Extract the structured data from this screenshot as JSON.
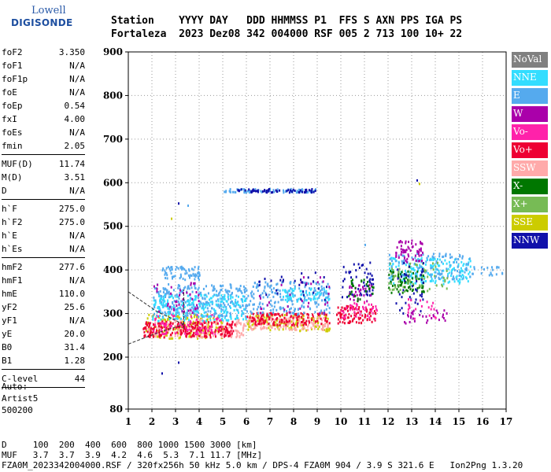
{
  "logo": {
    "line1": "Lowell",
    "line2": "DIGISONDE"
  },
  "header": {
    "line1": "Station    YYYY DAY   DDD HHMMSS P1  FFS S AXN PPS IGA PS",
    "line2": "Fortaleza  2023 Dez08 342 004000 RSF 005 2 713 100 10+ 22"
  },
  "params": {
    "group1": [
      {
        "name": "foF2",
        "value": "3.350"
      },
      {
        "name": "foF1",
        "value": "N/A"
      },
      {
        "name": "foF1p",
        "value": "N/A"
      },
      {
        "name": "foE",
        "value": "N/A"
      },
      {
        "name": "foEp",
        "value": "0.54"
      },
      {
        "name": "fxI",
        "value": "4.00"
      },
      {
        "name": "foEs",
        "value": "N/A"
      },
      {
        "name": "fmin",
        "value": "2.05"
      }
    ],
    "group2": [
      {
        "name": "MUF(D)",
        "value": "11.74"
      },
      {
        "name": "M(D)",
        "value": "3.51"
      },
      {
        "name": "D",
        "value": "N/A"
      }
    ],
    "group3": [
      {
        "name": "h`F",
        "value": "275.0"
      },
      {
        "name": "h`F2",
        "value": "275.0"
      },
      {
        "name": "h`E",
        "value": "N/A"
      },
      {
        "name": "h`Es",
        "value": "N/A"
      }
    ],
    "group4": [
      {
        "name": "hmF2",
        "value": "277.6"
      },
      {
        "name": "hmF1",
        "value": "N/A"
      },
      {
        "name": "hmE",
        "value": "110.0"
      },
      {
        "name": "yF2",
        "value": "25.6"
      },
      {
        "name": "yF1",
        "value": "N/A"
      },
      {
        "name": "yE",
        "value": "20.0"
      },
      {
        "name": "B0",
        "value": "31.4"
      },
      {
        "name": "B1",
        "value": "1.28"
      }
    ],
    "group5": [
      {
        "name": "C-level",
        "value": "44"
      }
    ]
  },
  "auto": {
    "line1": "Auto:",
    "line2": "Artist5",
    "line3": "500200"
  },
  "legend": [
    {
      "label": "NoVal",
      "color": "#808080"
    },
    {
      "label": "NNE",
      "color": "#33ddff"
    },
    {
      "label": "E",
      "color": "#55aaee"
    },
    {
      "label": "W",
      "color": "#aa00aa"
    },
    {
      "label": "Vo-",
      "color": "#ff22aa"
    },
    {
      "label": "Vo+",
      "color": "#ee0033"
    },
    {
      "label": "SSW",
      "color": "#ffaaaa"
    },
    {
      "label": "X-",
      "color": "#007700"
    },
    {
      "label": "X+",
      "color": "#77bb55"
    },
    {
      "label": "SSE",
      "color": "#cccc00"
    },
    {
      "label": "NNW",
      "color": "#1111aa"
    }
  ],
  "footer": {
    "line1": "D     100  200  400  600  800 1000 1500 3000 [km]",
    "line2": "MUF   3.7  3.7  3.9  4.2  4.6  5.3  7.1 11.7 [MHz]",
    "line3": "FZA0M_2023342004000.RSF / 320fx256h 50 kHz 5.0 km / DPS-4 FZA0M 904 / 3.9 S 321.6 E   Ion2Png 1.3.20"
  },
  "chart_data": {
    "type": "scatter",
    "title": "",
    "xlabel": "",
    "ylabel": "",
    "xlim": [
      1,
      17
    ],
    "ylim": [
      80,
      900
    ],
    "x_ticks": [
      1,
      2,
      3,
      4,
      5,
      6,
      7,
      8,
      9,
      10,
      11,
      12,
      13,
      14,
      15,
      16,
      17
    ],
    "y_ticks": [
      80,
      200,
      300,
      400,
      500,
      600,
      700,
      800,
      900
    ],
    "grid": "dotted",
    "legend_position": "right",
    "clusters": [
      {
        "series": "SSE",
        "x": [
          1.7,
          5.0
        ],
        "y": [
          245,
          300
        ],
        "n": 180
      },
      {
        "series": "SSW",
        "x": [
          1.8,
          6.0
        ],
        "y": [
          248,
          290
        ],
        "n": 180
      },
      {
        "series": "Vo+",
        "x": [
          1.6,
          5.5
        ],
        "y": [
          248,
          285
        ],
        "n": 220
      },
      {
        "series": "Vo-",
        "x": [
          2.0,
          5.0
        ],
        "y": [
          255,
          300
        ],
        "n": 80
      },
      {
        "series": "E",
        "x": [
          2.0,
          6.0
        ],
        "y": [
          295,
          370
        ],
        "n": 300
      },
      {
        "series": "NNE",
        "x": [
          2.0,
          6.0
        ],
        "y": [
          285,
          345
        ],
        "n": 200
      },
      {
        "series": "E",
        "x": [
          2.4,
          4.0
        ],
        "y": [
          380,
          410
        ],
        "n": 70
      },
      {
        "series": "W",
        "x": [
          2.0,
          4.0
        ],
        "y": [
          300,
          380
        ],
        "n": 40
      },
      {
        "series": "SSE",
        "x": [
          6.0,
          9.5
        ],
        "y": [
          262,
          300
        ],
        "n": 150
      },
      {
        "series": "SSW",
        "x": [
          6.0,
          9.5
        ],
        "y": [
          265,
          295
        ],
        "n": 140
      },
      {
        "series": "Vo+",
        "x": [
          6.0,
          9.5
        ],
        "y": [
          275,
          305
        ],
        "n": 130
      },
      {
        "series": "E",
        "x": [
          6.0,
          9.5
        ],
        "y": [
          300,
          375
        ],
        "n": 200
      },
      {
        "series": "NNE",
        "x": [
          7.5,
          9.5
        ],
        "y": [
          330,
          360
        ],
        "n": 60
      },
      {
        "series": "W",
        "x": [
          6.5,
          9.5
        ],
        "y": [
          300,
          390
        ],
        "n": 30
      },
      {
        "series": "NNW",
        "x": [
          6.5,
          9.5
        ],
        "y": [
          330,
          400
        ],
        "n": 30
      },
      {
        "series": "E",
        "x": [
          5.0,
          8.9
        ],
        "y": [
          580,
          588
        ],
        "n": 80
      },
      {
        "series": "NNW",
        "x": [
          5.6,
          8.9
        ],
        "y": [
          580,
          588
        ],
        "n": 60
      },
      {
        "series": "Vo+",
        "x": [
          9.8,
          11.5
        ],
        "y": [
          280,
          320
        ],
        "n": 90
      },
      {
        "series": "Vo-",
        "x": [
          10.0,
          11.5
        ],
        "y": [
          290,
          330
        ],
        "n": 40
      },
      {
        "series": "NNW",
        "x": [
          10.0,
          11.4
        ],
        "y": [
          340,
          420
        ],
        "n": 50
      },
      {
        "series": "W",
        "x": [
          10.3,
          11.3
        ],
        "y": [
          330,
          370
        ],
        "n": 30
      },
      {
        "series": "X-",
        "x": [
          10.3,
          11.5
        ],
        "y": [
          330,
          380
        ],
        "n": 25
      },
      {
        "series": "NNE",
        "x": [
          12.0,
          15.5
        ],
        "y": [
          370,
          430
        ],
        "n": 180
      },
      {
        "series": "E",
        "x": [
          12.0,
          15.5
        ],
        "y": [
          380,
          440
        ],
        "n": 120
      },
      {
        "series": "X-",
        "x": [
          12.0,
          13.5
        ],
        "y": [
          350,
          400
        ],
        "n": 70
      },
      {
        "series": "X+",
        "x": [
          12.0,
          14.5
        ],
        "y": [
          350,
          420
        ],
        "n": 60
      },
      {
        "series": "W",
        "x": [
          12.3,
          13.5
        ],
        "y": [
          420,
          470
        ],
        "n": 60
      },
      {
        "series": "W",
        "x": [
          12.5,
          14.5
        ],
        "y": [
          280,
          310
        ],
        "n": 30
      },
      {
        "series": "NNW",
        "x": [
          12.2,
          13.5
        ],
        "y": [
          300,
          420
        ],
        "n": 40
      },
      {
        "series": "Vo-",
        "x": [
          12.8,
          14.0
        ],
        "y": [
          290,
          340
        ],
        "n": 20
      },
      {
        "series": "E",
        "x": [
          15.5,
          16.9
        ],
        "y": [
          390,
          410
        ],
        "n": 20
      }
    ],
    "isolated": [
      {
        "series": "NNW",
        "x": 3.1,
        "y": 555
      },
      {
        "series": "E",
        "x": 3.5,
        "y": 550
      },
      {
        "series": "SSE",
        "x": 2.8,
        "y": 520
      },
      {
        "series": "NNW",
        "x": 2.4,
        "y": 165
      },
      {
        "series": "NNW",
        "x": 3.1,
        "y": 190
      },
      {
        "series": "SSE",
        "x": 13.3,
        "y": 600
      },
      {
        "series": "NNW",
        "x": 13.2,
        "y": 608
      },
      {
        "series": "E",
        "x": 11.0,
        "y": 460
      }
    ],
    "trace_lines": [
      {
        "x": [
          1.0,
          2.2,
          3.35
        ],
        "y": [
          350,
          305,
          275
        ]
      },
      {
        "x": [
          1.0,
          2.2,
          3.35
        ],
        "y": [
          230,
          255,
          275
        ]
      },
      {
        "x": [
          3.35,
          3.35
        ],
        "y": [
          265,
          355
        ]
      }
    ]
  }
}
